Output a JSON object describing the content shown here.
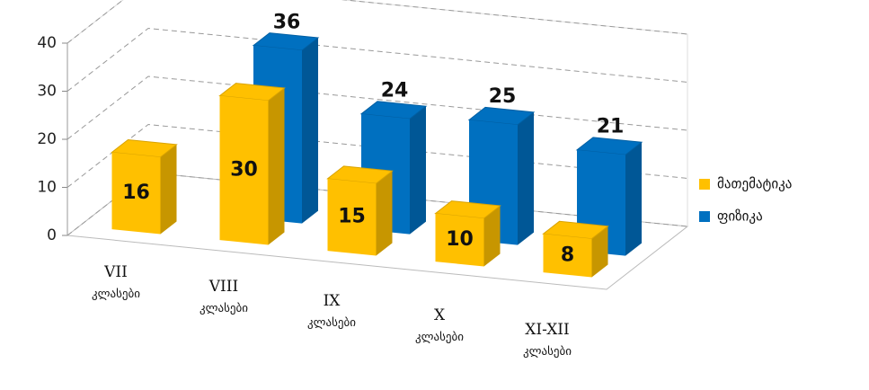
{
  "chart_data": {
    "type": "bar3d",
    "categories": [
      [
        "VII",
        "კლასები"
      ],
      [
        "VIII",
        "კლასები"
      ],
      [
        "IX",
        "კლასები"
      ],
      [
        "X",
        "კლასები"
      ],
      [
        "XI-XII",
        "კლასები"
      ]
    ],
    "series": [
      {
        "name": "მათემატიკა",
        "color": "#ffc000",
        "values": [
          16,
          30,
          15,
          10,
          8
        ]
      },
      {
        "name": "ფიზიკა",
        "color": "#0070c0",
        "values": [
          null,
          36,
          24,
          25,
          21
        ]
      }
    ],
    "ylim": [
      0,
      40
    ],
    "yticks": [
      0,
      10,
      20,
      30,
      40
    ],
    "grid": true,
    "legend": "right"
  }
}
